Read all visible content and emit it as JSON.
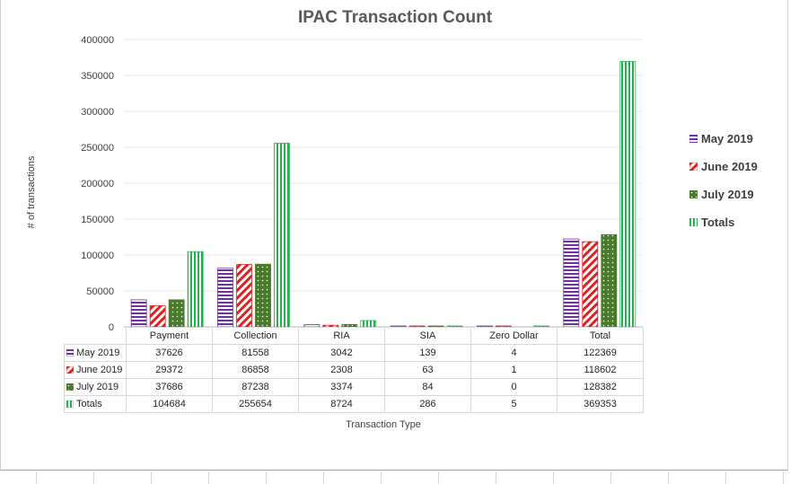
{
  "chart_data": {
    "type": "bar",
    "title": "IPAC Transaction Count",
    "xlabel": "Transaction Type",
    "ylabel": "# of transactions",
    "ylim": [
      0,
      400000
    ],
    "yticks": [
      "0",
      "50000",
      "100000",
      "150000",
      "200000",
      "250000",
      "300000",
      "350000",
      "400000"
    ],
    "grid": true,
    "legend_position": "right",
    "categories": [
      "Payment",
      "Collection",
      "RIA",
      "SIA",
      "Zero Dollar",
      "Total"
    ],
    "series": [
      {
        "name": "May 2019",
        "values": [
          37626,
          81558,
          3042,
          139,
          4,
          122369
        ],
        "labels": [
          "37626",
          "81558",
          "3042",
          "139",
          "4",
          "122369"
        ],
        "color": "#7030a0",
        "pattern": "horizontal-stripes"
      },
      {
        "name": "June 2019",
        "values": [
          29372,
          86858,
          2308,
          63,
          1,
          118602
        ],
        "labels": [
          "29372",
          "86858",
          "2308",
          "63",
          "1",
          "118602"
        ],
        "color": "#e02020",
        "pattern": "diagonal-stripes"
      },
      {
        "name": "July 2019",
        "values": [
          37686,
          87238,
          3374,
          84,
          0,
          128382
        ],
        "labels": [
          "37686",
          "87238",
          "3374",
          "84",
          "0",
          "128382"
        ],
        "color": "#4a7a2c",
        "pattern": "dotted"
      },
      {
        "name": "Totals",
        "values": [
          104684,
          255654,
          8724,
          286,
          5,
          369353
        ],
        "labels": [
          "104684",
          "255654",
          "8724",
          "286",
          "5",
          "369353"
        ],
        "color": "#22b14c",
        "pattern": "vertical-stripes"
      }
    ]
  }
}
